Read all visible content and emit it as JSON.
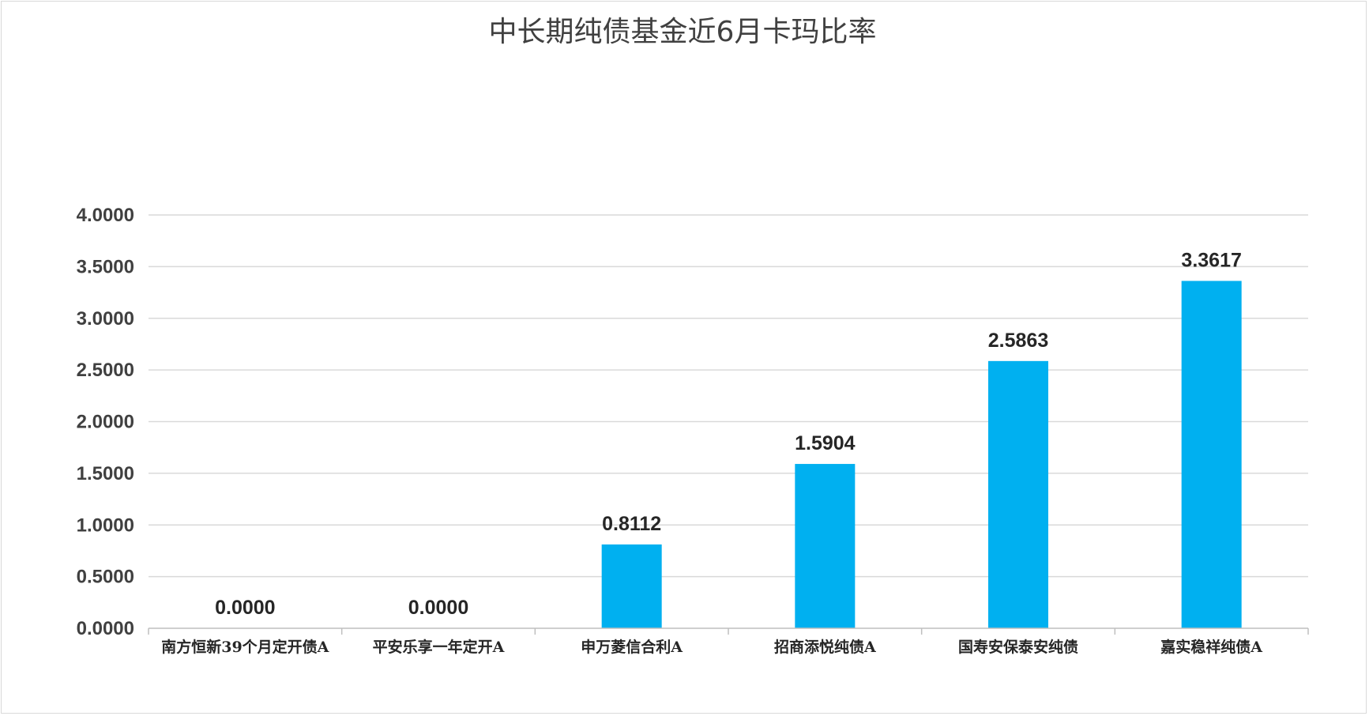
{
  "chart_data": {
    "type": "bar",
    "title": "中长期纯债基金近6月卡玛比率",
    "xlabel": "",
    "ylabel": "",
    "categories": [
      "南方恒新39个月定开债A",
      "平安乐享一年定开A",
      "申万菱信合利A",
      "招商添悦纯债A",
      "国寿安保泰安纯债",
      "嘉实稳祥纯债A"
    ],
    "values": [
      0.0,
      0.0,
      0.8112,
      1.5904,
      2.5863,
      3.3617
    ],
    "value_labels": [
      "0.0000",
      "0.0000",
      "0.8112",
      "1.5904",
      "2.5863",
      "3.3617"
    ],
    "ylim": [
      0,
      4
    ],
    "yticks": [
      0,
      0.5,
      1,
      1.5,
      2,
      2.5,
      3,
      3.5,
      4
    ],
    "ytick_labels": [
      "0.0000",
      "0.5000",
      "1.0000",
      "1.5000",
      "2.0000",
      "2.5000",
      "3.0000",
      "3.5000",
      "4.0000"
    ],
    "grid": true,
    "legend": "none",
    "bar_color": "#00b0f0"
  }
}
